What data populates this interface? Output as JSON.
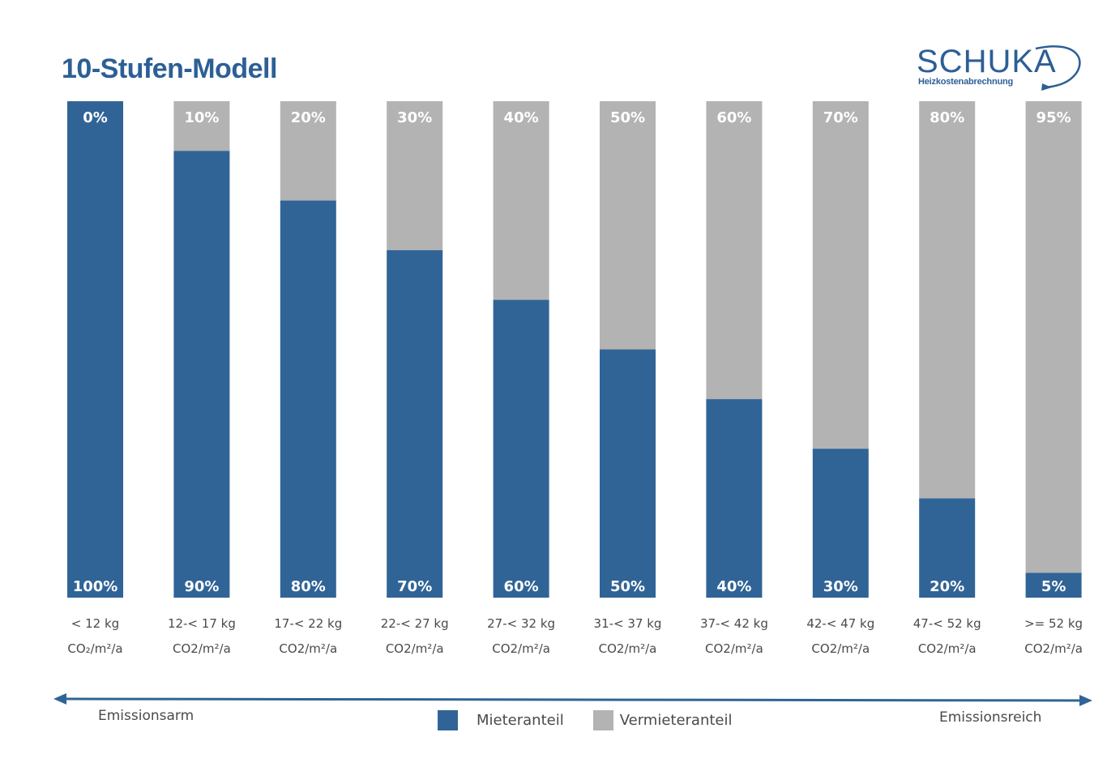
{
  "title": "10-Stufen-Modell",
  "logo": {
    "word": "SCHUKA",
    "sub": "Heizkostenabrechnung"
  },
  "colors": {
    "mieter": "#306496",
    "vermieter": "#b3b3b3",
    "title": "#2c5f96",
    "arrow": "#306496"
  },
  "chart_data": {
    "type": "bar",
    "stacked": true,
    "categories": [
      "< 12 kg CO₂/m²/a",
      "12-< 17 kg CO2/m²/a",
      "17-< 22 kg CO2/m²/a",
      "22-< 27 kg CO2/m²/a",
      "27-< 32 kg CO2/m²/a",
      "31-< 37 kg CO2/m²/a",
      "37-< 42 kg CO2/m²/a",
      "42-< 47 kg CO2/m²/a",
      "47-< 52 kg CO2/m²/a",
      ">= 52 kg CO2/m²/a"
    ],
    "category_lines": [
      [
        "< 12 kg",
        "CO₂/m²/a"
      ],
      [
        "12-< 17 kg",
        "CO2/m²/a"
      ],
      [
        "17-< 22 kg",
        "CO2/m²/a"
      ],
      [
        "22-< 27 kg",
        "CO2/m²/a"
      ],
      [
        "27-< 32 kg",
        "CO2/m²/a"
      ],
      [
        "31-< 37 kg",
        "CO2/m²/a"
      ],
      [
        "37-< 42 kg",
        "CO2/m²/a"
      ],
      [
        "42-< 47 kg",
        "CO2/m²/a"
      ],
      [
        "47-< 52 kg",
        "CO2/m²/a"
      ],
      [
        ">= 52 kg",
        "CO2/m²/a"
      ]
    ],
    "series": [
      {
        "name": "Mieteranteil",
        "values": [
          100,
          90,
          80,
          70,
          60,
          50,
          40,
          30,
          20,
          5
        ]
      },
      {
        "name": "Vermieteranteil",
        "values": [
          0,
          10,
          20,
          30,
          40,
          50,
          60,
          70,
          80,
          95
        ]
      }
    ],
    "labels_bottom": [
      "100%",
      "90%",
      "80%",
      "70%",
      "60%",
      "50%",
      "40%",
      "30%",
      "20%",
      "5%"
    ],
    "labels_top": [
      "0%",
      "10%",
      "20%",
      "30%",
      "40%",
      "50%",
      "60%",
      "70%",
      "80%",
      "95%"
    ],
    "ylim": [
      0,
      100
    ],
    "grid": false,
    "legend_position": "bottom-center",
    "axis_left_label": "Emissionsarm",
    "axis_right_label": "Emissionsreich"
  }
}
